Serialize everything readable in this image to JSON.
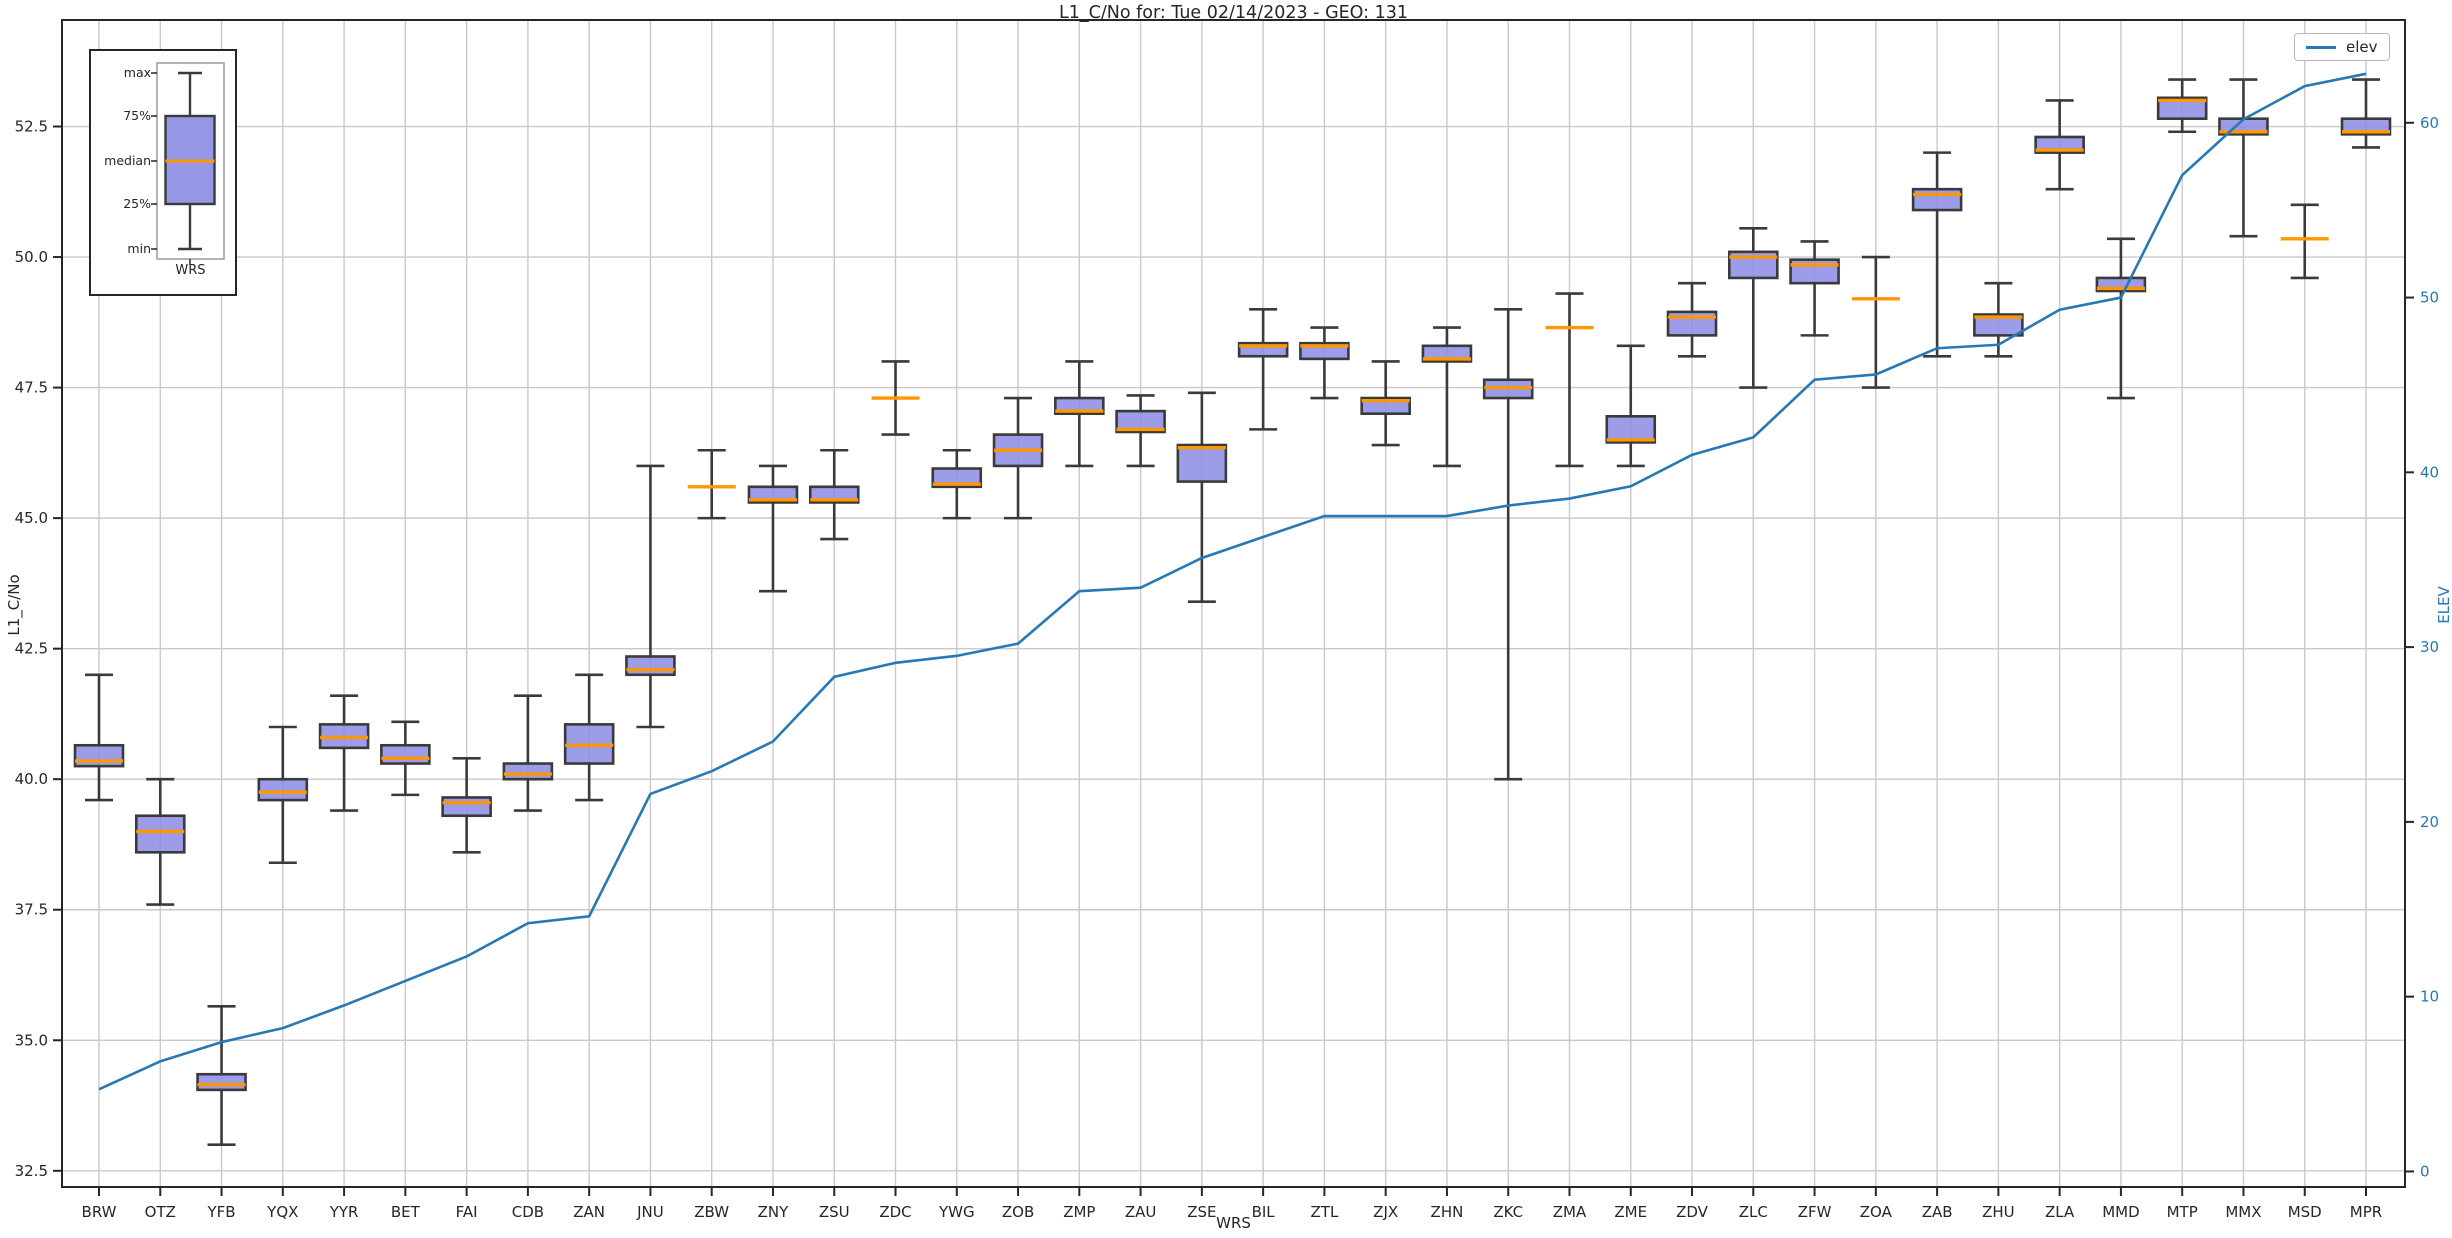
{
  "title": "L1_C/No for: Tue 02/14/2023 - GEO: 131",
  "axes": {
    "x": {
      "label": "WRS"
    },
    "left": {
      "label": "L1_C/No",
      "ticks": [
        32.5,
        35.0,
        37.5,
        40.0,
        42.5,
        45.0,
        47.5,
        50.0,
        52.5
      ],
      "range": [
        32.19,
        54.54
      ]
    },
    "right": {
      "label": "ELEV",
      "ticks": [
        0,
        10,
        20,
        30,
        40,
        50,
        60
      ],
      "range": [
        -0.89,
        65.88
      ],
      "color": "#2779b5"
    }
  },
  "legend": {
    "items": [
      {
        "label": "elev",
        "color": "#2779b5"
      }
    ]
  },
  "inset": {
    "max_label": "max",
    "q3_label": "75%",
    "median_label": "median",
    "q1_label": "25%",
    "min_label": "min",
    "xlabel": "WRS"
  },
  "colors": {
    "box_fill": "#8b8be4",
    "box_edge": "#3a3a3a",
    "median": "#ff9800",
    "line": "#2779b5",
    "grid": "#c9c9c9",
    "spine": "#262626",
    "text": "#262626"
  },
  "chart_data": [
    {
      "type": "box",
      "title": "L1_C/No for: Tue 02/14/2023 - GEO: 131",
      "xlabel": "WRS",
      "ylabel": "L1_C/No",
      "ylim": [
        32.2,
        54.5
      ],
      "grid": true,
      "categories": [
        "BRW",
        "OTZ",
        "YFB",
        "YQX",
        "YYR",
        "BET",
        "FAI",
        "CDB",
        "ZAN",
        "JNU",
        "ZBW",
        "ZNY",
        "ZSU",
        "ZDC",
        "YWG",
        "ZOB",
        "ZMP",
        "ZAU",
        "ZSE",
        "BIL",
        "ZTL",
        "ZJX",
        "ZHN",
        "ZKC",
        "ZMA",
        "ZME",
        "ZDV",
        "ZLC",
        "ZFW",
        "ZOA",
        "ZAB",
        "ZHU",
        "ZLA",
        "MMD",
        "MTP",
        "MMX",
        "MSD",
        "MPR"
      ],
      "stats": [
        {
          "label": "BRW",
          "min": 39.6,
          "q1": 40.25,
          "med": 40.35,
          "q3": 40.65,
          "max": 42.0,
          "flat": false
        },
        {
          "label": "OTZ",
          "min": 37.6,
          "q1": 38.6,
          "med": 39.0,
          "q3": 39.3,
          "max": 40.0,
          "flat": false
        },
        {
          "label": "YFB",
          "min": 33.0,
          "q1": 34.05,
          "med": 34.15,
          "q3": 34.35,
          "max": 35.65,
          "flat": false
        },
        {
          "label": "YQX",
          "min": 38.4,
          "q1": 39.6,
          "med": 39.75,
          "q3": 40.0,
          "max": 41.0,
          "flat": false
        },
        {
          "label": "YYR",
          "min": 39.4,
          "q1": 40.6,
          "med": 40.8,
          "q3": 41.05,
          "max": 41.6,
          "flat": false
        },
        {
          "label": "BET",
          "min": 39.7,
          "q1": 40.3,
          "med": 40.4,
          "q3": 40.65,
          "max": 41.1,
          "flat": false
        },
        {
          "label": "FAI",
          "min": 38.6,
          "q1": 39.3,
          "med": 39.55,
          "q3": 39.65,
          "max": 40.4,
          "flat": false
        },
        {
          "label": "CDB",
          "min": 39.4,
          "q1": 40.0,
          "med": 40.1,
          "q3": 40.3,
          "max": 41.6,
          "flat": false
        },
        {
          "label": "ZAN",
          "min": 39.6,
          "q1": 40.3,
          "med": 40.65,
          "q3": 41.05,
          "max": 42.0,
          "flat": false
        },
        {
          "label": "JNU",
          "min": 41.0,
          "q1": 42.0,
          "med": 42.1,
          "q3": 42.35,
          "max": 46.0,
          "flat": false
        },
        {
          "label": "ZBW",
          "min": 45.0,
          "q1": 45.6,
          "med": 45.6,
          "q3": 45.6,
          "max": 46.3,
          "flat": true
        },
        {
          "label": "ZNY",
          "min": 43.6,
          "q1": 45.3,
          "med": 45.35,
          "q3": 45.6,
          "max": 46.0,
          "flat": false
        },
        {
          "label": "ZSU",
          "min": 44.6,
          "q1": 45.3,
          "med": 45.35,
          "q3": 45.6,
          "max": 46.3,
          "flat": false
        },
        {
          "label": "ZDC",
          "min": 46.6,
          "q1": 47.3,
          "med": 47.3,
          "q3": 47.3,
          "max": 48.0,
          "flat": true
        },
        {
          "label": "YWG",
          "min": 45.0,
          "q1": 45.6,
          "med": 45.65,
          "q3": 45.95,
          "max": 46.3,
          "flat": false
        },
        {
          "label": "ZOB",
          "min": 45.0,
          "q1": 46.0,
          "med": 46.3,
          "q3": 46.6,
          "max": 47.3,
          "flat": false
        },
        {
          "label": "ZMP",
          "min": 46.0,
          "q1": 47.0,
          "med": 47.05,
          "q3": 47.3,
          "max": 48.0,
          "flat": false
        },
        {
          "label": "ZAU",
          "min": 46.0,
          "q1": 46.65,
          "med": 46.7,
          "q3": 47.05,
          "max": 47.35,
          "flat": false
        },
        {
          "label": "ZSE",
          "min": 43.4,
          "q1": 45.7,
          "med": 46.35,
          "q3": 46.4,
          "max": 47.4,
          "flat": false
        },
        {
          "label": "BIL",
          "min": 46.7,
          "q1": 48.1,
          "med": 48.3,
          "q3": 48.35,
          "max": 49.0,
          "flat": false
        },
        {
          "label": "ZTL",
          "min": 47.3,
          "q1": 48.05,
          "med": 48.3,
          "q3": 48.35,
          "max": 48.65,
          "flat": false
        },
        {
          "label": "ZJX",
          "min": 46.4,
          "q1": 47.0,
          "med": 47.25,
          "q3": 47.3,
          "max": 48.0,
          "flat": false
        },
        {
          "label": "ZHN",
          "min": 46.0,
          "q1": 48.0,
          "med": 48.05,
          "q3": 48.3,
          "max": 48.65,
          "flat": false
        },
        {
          "label": "ZKC",
          "min": 40.0,
          "q1": 47.3,
          "med": 47.5,
          "q3": 47.65,
          "max": 49.0,
          "flat": false
        },
        {
          "label": "ZMA",
          "min": 46.0,
          "q1": 48.65,
          "med": 48.65,
          "q3": 48.65,
          "max": 49.3,
          "flat": true
        },
        {
          "label": "ZME",
          "min": 46.0,
          "q1": 46.45,
          "med": 46.5,
          "q3": 46.95,
          "max": 48.3,
          "flat": false
        },
        {
          "label": "ZDV",
          "min": 48.1,
          "q1": 48.5,
          "med": 48.85,
          "q3": 48.95,
          "max": 49.5,
          "flat": false
        },
        {
          "label": "ZLC",
          "min": 47.5,
          "q1": 49.6,
          "med": 50.0,
          "q3": 50.1,
          "max": 50.55,
          "flat": false
        },
        {
          "label": "ZFW",
          "min": 48.5,
          "q1": 49.5,
          "med": 49.85,
          "q3": 49.95,
          "max": 50.3,
          "flat": false
        },
        {
          "label": "ZOA",
          "min": 47.5,
          "q1": 49.2,
          "med": 49.2,
          "q3": 49.2,
          "max": 50.0,
          "flat": true
        },
        {
          "label": "ZAB",
          "min": 48.1,
          "q1": 50.9,
          "med": 51.2,
          "q3": 51.3,
          "max": 52.0,
          "flat": false
        },
        {
          "label": "ZHU",
          "min": 48.1,
          "q1": 48.5,
          "med": 48.85,
          "q3": 48.9,
          "max": 49.5,
          "flat": false
        },
        {
          "label": "ZLA",
          "min": 51.3,
          "q1": 52.0,
          "med": 52.05,
          "q3": 52.3,
          "max": 53.0,
          "flat": false
        },
        {
          "label": "MMD",
          "min": 47.3,
          "q1": 49.35,
          "med": 49.4,
          "q3": 49.6,
          "max": 50.35,
          "flat": false
        },
        {
          "label": "MTP",
          "min": 52.4,
          "q1": 52.65,
          "med": 53.0,
          "q3": 53.05,
          "max": 53.4,
          "flat": false
        },
        {
          "label": "MMX",
          "min": 50.4,
          "q1": 52.35,
          "med": 52.4,
          "q3": 52.65,
          "max": 53.4,
          "flat": false
        },
        {
          "label": "MSD",
          "min": 49.6,
          "q1": 50.35,
          "med": 50.35,
          "q3": 50.35,
          "max": 51.0,
          "flat": true
        },
        {
          "label": "MPR",
          "min": 52.1,
          "q1": 52.35,
          "med": 52.4,
          "q3": 52.65,
          "max": 53.4,
          "flat": false
        }
      ]
    },
    {
      "type": "line",
      "name": "elev",
      "axis": "right",
      "ylabel": "ELEV",
      "ylim": [
        -0.9,
        65.9
      ],
      "legend_position": "upper right",
      "x": [
        "BRW",
        "OTZ",
        "YFB",
        "YQX",
        "YYR",
        "BET",
        "FAI",
        "CDB",
        "ZAN",
        "JNU",
        "ZBW",
        "ZNY",
        "ZSU",
        "ZDC",
        "YWG",
        "ZOB",
        "ZMP",
        "ZAU",
        "ZSE",
        "BIL",
        "ZTL",
        "ZJX",
        "ZHN",
        "ZKC",
        "ZMA",
        "ZME",
        "ZDV",
        "ZLC",
        "ZFW",
        "ZOA",
        "ZAB",
        "ZHU",
        "ZLA",
        "MMD",
        "MTP",
        "MMX",
        "MSD",
        "MPR"
      ],
      "values": [
        4.7,
        6.3,
        7.4,
        8.2,
        9.5,
        10.9,
        12.3,
        14.2,
        14.6,
        21.6,
        22.9,
        24.6,
        28.3,
        29.1,
        29.5,
        30.2,
        33.2,
        33.4,
        35.1,
        36.3,
        37.5,
        37.5,
        37.5,
        38.1,
        38.5,
        39.2,
        41.0,
        42.0,
        45.3,
        45.6,
        47.1,
        47.3,
        49.3,
        50.0,
        57.0,
        60.2,
        62.1,
        62.8
      ]
    }
  ]
}
